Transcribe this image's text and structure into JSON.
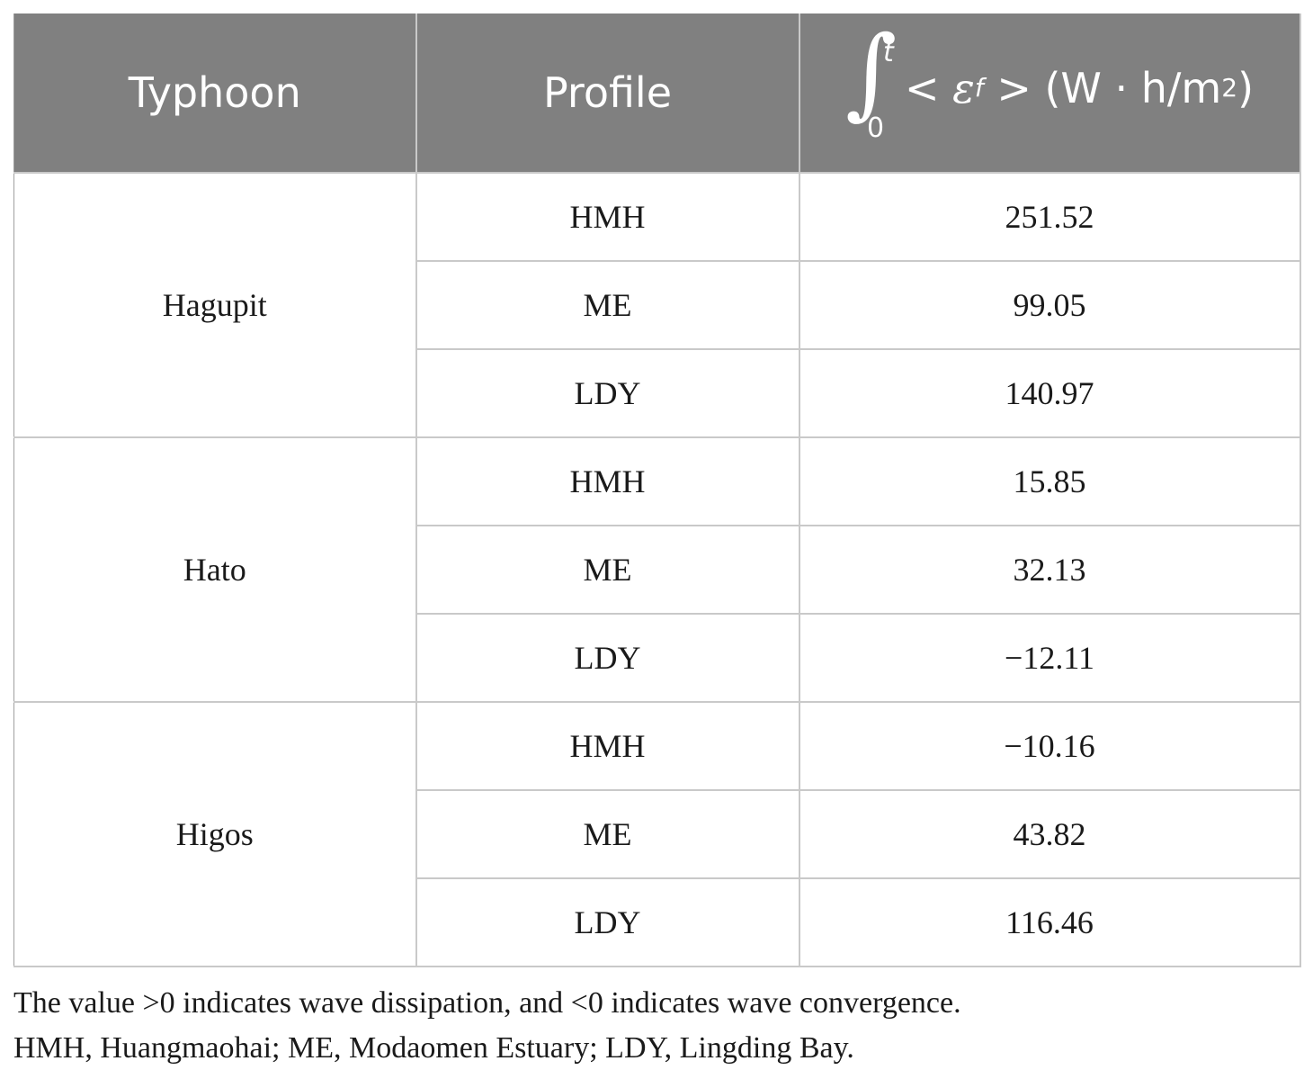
{
  "table": {
    "headers": {
      "typhoon": "Typhoon",
      "profile": "Profile",
      "formula": {
        "integral_upper": "t",
        "integral_lower": "0",
        "lt": "<",
        "epsilon": "ε",
        "epsilon_sub": "f",
        "gt": ">",
        "unit_open": "(W · h/m",
        "unit_sup": "2",
        "unit_close": ")"
      }
    },
    "groups": [
      {
        "typhoon": "Hagupit",
        "rows": [
          {
            "profile": "HMH",
            "value": "251.52"
          },
          {
            "profile": "ME",
            "value": "99.05"
          },
          {
            "profile": "LDY",
            "value": "140.97"
          }
        ]
      },
      {
        "typhoon": "Hato",
        "rows": [
          {
            "profile": "HMH",
            "value": "15.85"
          },
          {
            "profile": "ME",
            "value": "32.13"
          },
          {
            "profile": "LDY",
            "value": "−12.11"
          }
        ]
      },
      {
        "typhoon": "Higos",
        "rows": [
          {
            "profile": "HMH",
            "value": "−10.16"
          },
          {
            "profile": "ME",
            "value": "43.82"
          },
          {
            "profile": "LDY",
            "value": "116.46"
          }
        ]
      }
    ]
  },
  "notes": [
    "The value >0 indicates wave dissipation, and <0 indicates wave convergence.",
    "HMH, Huangmaohai; ME, Modaomen Estuary; LDY, Lingding Bay."
  ],
  "colors": {
    "header_bg": "#808080",
    "header_text": "#ffffff",
    "grid": "#c9c9c9"
  }
}
